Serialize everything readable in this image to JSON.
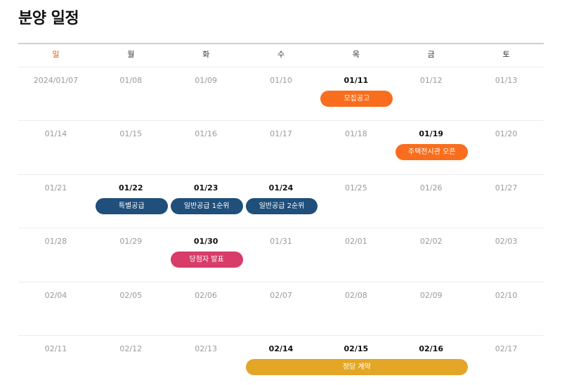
{
  "page_title": "분양 일정",
  "colors": {
    "sunday": "#e0531c",
    "orange": "#f96d1d",
    "navy": "#1f4f7a",
    "pink": "#d83c69",
    "gold": "#e3a626"
  },
  "weekdays": [
    "일",
    "월",
    "화",
    "수",
    "목",
    "금",
    "토"
  ],
  "weeks": [
    {
      "days": [
        {
          "date": "2024/01/07",
          "active": false
        },
        {
          "date": "01/08",
          "active": false
        },
        {
          "date": "01/09",
          "active": false
        },
        {
          "date": "01/10",
          "active": false
        },
        {
          "date": "01/11",
          "active": true
        },
        {
          "date": "01/12",
          "active": false
        },
        {
          "date": "01/13",
          "active": false
        }
      ]
    },
    {
      "days": [
        {
          "date": "01/14",
          "active": false
        },
        {
          "date": "01/15",
          "active": false
        },
        {
          "date": "01/16",
          "active": false
        },
        {
          "date": "01/17",
          "active": false
        },
        {
          "date": "01/18",
          "active": false
        },
        {
          "date": "01/19",
          "active": true
        },
        {
          "date": "01/20",
          "active": false
        }
      ]
    },
    {
      "days": [
        {
          "date": "01/21",
          "active": false
        },
        {
          "date": "01/22",
          "active": true
        },
        {
          "date": "01/23",
          "active": true
        },
        {
          "date": "01/24",
          "active": true
        },
        {
          "date": "01/25",
          "active": false
        },
        {
          "date": "01/26",
          "active": false
        },
        {
          "date": "01/27",
          "active": false
        }
      ]
    },
    {
      "days": [
        {
          "date": "01/28",
          "active": false
        },
        {
          "date": "01/29",
          "active": false
        },
        {
          "date": "01/30",
          "active": true
        },
        {
          "date": "01/31",
          "active": false
        },
        {
          "date": "02/01",
          "active": false
        },
        {
          "date": "02/02",
          "active": false
        },
        {
          "date": "02/03",
          "active": false
        }
      ]
    },
    {
      "days": [
        {
          "date": "02/04",
          "active": false
        },
        {
          "date": "02/05",
          "active": false
        },
        {
          "date": "02/06",
          "active": false
        },
        {
          "date": "02/07",
          "active": false
        },
        {
          "date": "02/08",
          "active": false
        },
        {
          "date": "02/09",
          "active": false
        },
        {
          "date": "02/10",
          "active": false
        }
      ]
    },
    {
      "days": [
        {
          "date": "02/11",
          "active": false
        },
        {
          "date": "02/12",
          "active": false
        },
        {
          "date": "02/13",
          "active": false
        },
        {
          "date": "02/14",
          "active": true
        },
        {
          "date": "02/15",
          "active": true
        },
        {
          "date": "02/16",
          "active": true
        },
        {
          "date": "02/17",
          "active": false
        }
      ]
    }
  ],
  "events": [
    {
      "label": "모집공고",
      "week": 0,
      "start_day": 4,
      "span_days": 1,
      "color": "orange"
    },
    {
      "label": "주택전시관 오픈",
      "week": 1,
      "start_day": 5,
      "span_days": 1,
      "color": "orange"
    },
    {
      "label": "특별공급",
      "week": 2,
      "start_day": 1,
      "span_days": 1,
      "color": "navy"
    },
    {
      "label": "일반공급 1순위",
      "week": 2,
      "start_day": 2,
      "span_days": 1,
      "color": "navy"
    },
    {
      "label": "일반공급 2순위",
      "week": 2,
      "start_day": 3,
      "span_days": 1,
      "color": "navy"
    },
    {
      "label": "당첨자 발표",
      "week": 3,
      "start_day": 2,
      "span_days": 1,
      "color": "pink"
    },
    {
      "label": "정당 계약",
      "week": 5,
      "start_day": 3,
      "span_days": 3,
      "color": "gold"
    }
  ]
}
